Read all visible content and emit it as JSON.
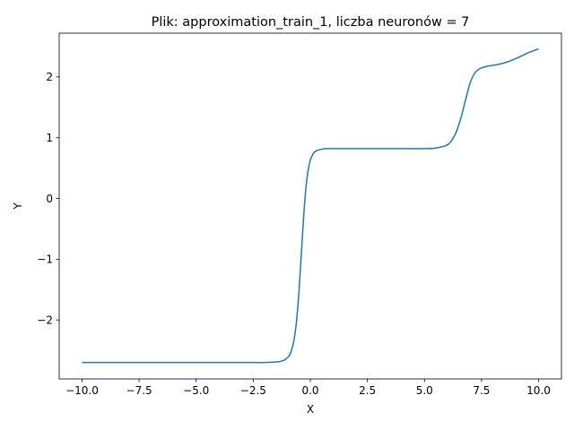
{
  "chart_data": {
    "type": "line",
    "title": "Plik: approximation_train_1, liczba neuronów = 7",
    "xlabel": "X",
    "ylabel": "Y",
    "xlim": [
      -11.0,
      11.0
    ],
    "ylim": [
      -2.97,
      2.72
    ],
    "grid": false,
    "x_ticks": [
      -10.0,
      -7.5,
      -5.0,
      -2.5,
      0.0,
      2.5,
      5.0,
      7.5,
      10.0
    ],
    "x_tick_labels": [
      "−10.0",
      "−7.5",
      "−5.0",
      "−2.5",
      "0.0",
      "2.5",
      "5.0",
      "7.5",
      "10.0"
    ],
    "y_ticks": [
      -2,
      -1,
      0,
      1,
      2
    ],
    "y_tick_labels": [
      "−2",
      "−1",
      "0",
      "1",
      "2"
    ],
    "series": [
      {
        "color": "#1f77b4",
        "x": [
          -10.0,
          -8.0,
          -6.0,
          -4.0,
          -2.5,
          -2.0,
          -1.5,
          -1.2,
          -1.0,
          -0.9,
          -0.8,
          -0.7,
          -0.6,
          -0.5,
          -0.4,
          -0.3,
          -0.2,
          -0.1,
          0.0,
          0.1,
          0.2,
          0.3,
          0.5,
          0.7,
          1.0,
          1.5,
          2.0,
          3.0,
          4.0,
          5.0,
          5.5,
          6.0,
          6.2,
          6.4,
          6.6,
          6.8,
          7.0,
          7.2,
          7.4,
          7.6,
          7.8,
          8.0,
          8.5,
          9.0,
          9.5,
          10.0
        ],
        "y": [
          -2.7,
          -2.7,
          -2.7,
          -2.7,
          -2.7,
          -2.7,
          -2.69,
          -2.67,
          -2.62,
          -2.57,
          -2.47,
          -2.3,
          -2.0,
          -1.55,
          -0.95,
          -0.35,
          0.15,
          0.45,
          0.63,
          0.72,
          0.77,
          0.79,
          0.81,
          0.82,
          0.82,
          0.82,
          0.82,
          0.82,
          0.82,
          0.82,
          0.83,
          0.88,
          0.96,
          1.1,
          1.33,
          1.62,
          1.9,
          2.06,
          2.13,
          2.16,
          2.18,
          2.19,
          2.23,
          2.3,
          2.39,
          2.46
        ]
      }
    ]
  }
}
